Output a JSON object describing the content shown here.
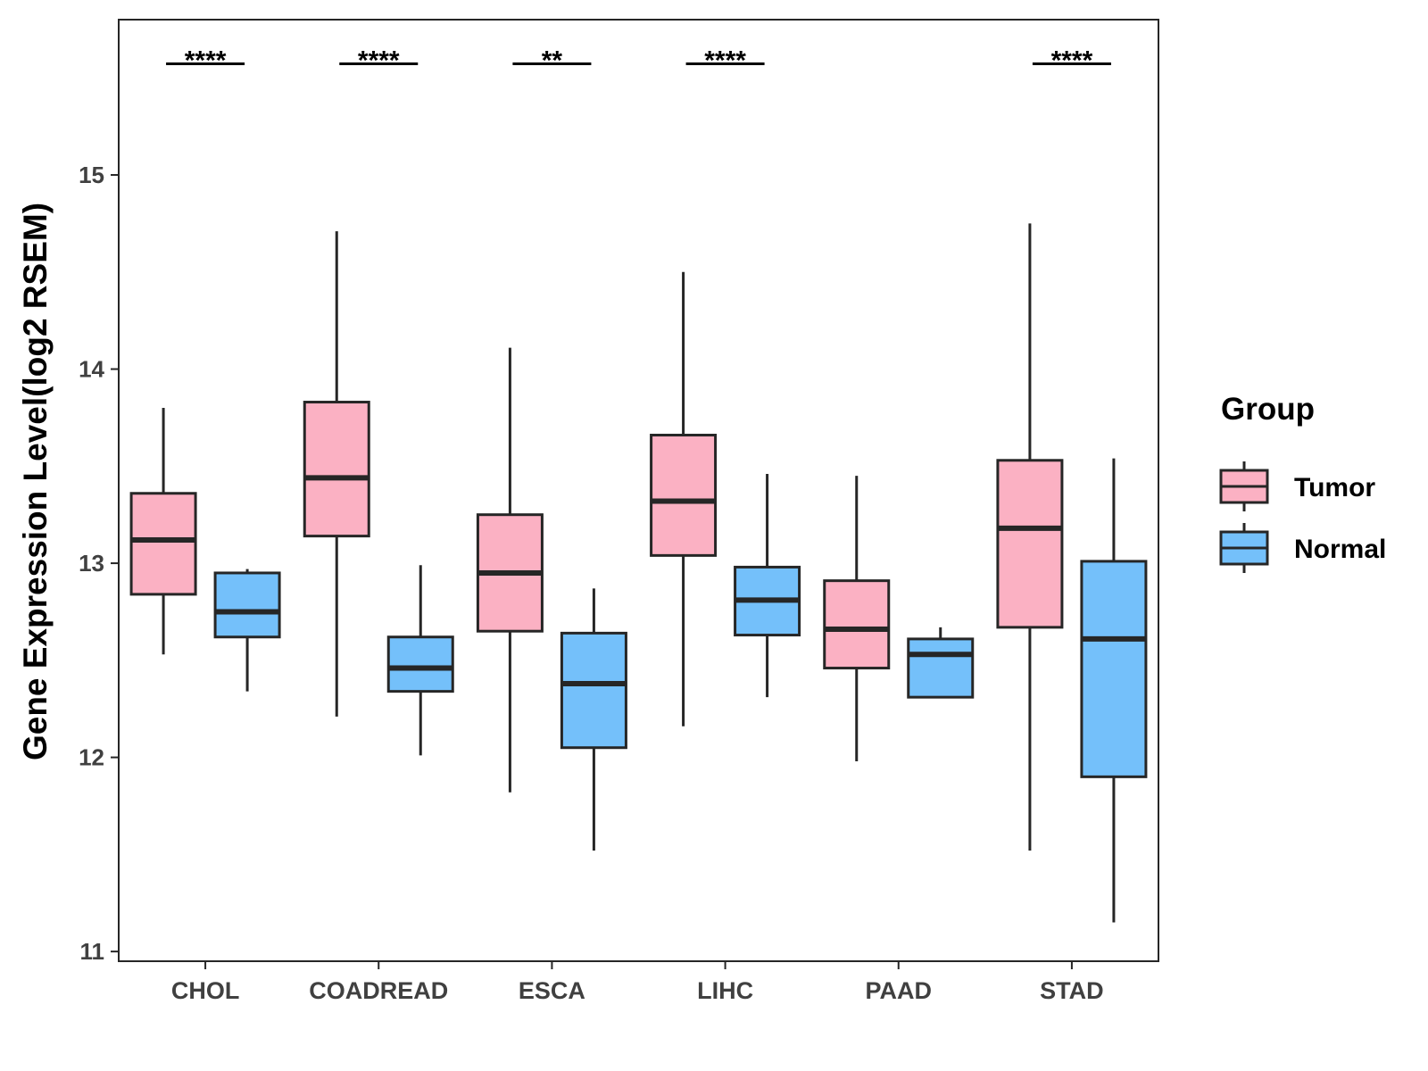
{
  "chart_data": {
    "type": "boxplot",
    "title": "",
    "xlabel": "",
    "ylabel": "Gene Expression Level(log2 RSEM)",
    "ylim": [
      10.95,
      15.8
    ],
    "yticks": [
      11,
      12,
      13,
      14,
      15
    ],
    "grid": false,
    "categories": [
      "CHOL",
      "COADREAD",
      "ESCA",
      "LIHC",
      "PAAD",
      "STAD"
    ],
    "legend": {
      "title": "Group",
      "position": "right",
      "entries": [
        {
          "name": "Tumor",
          "color": "#FBB1C3"
        },
        {
          "name": "Normal",
          "color": "#74C0FA"
        }
      ]
    },
    "series": [
      {
        "name": "Tumor",
        "color": "#FBB1C3",
        "boxes": [
          {
            "min": 12.53,
            "q1": 12.84,
            "median": 13.12,
            "q3": 13.36,
            "max": 13.8
          },
          {
            "min": 12.21,
            "q1": 13.14,
            "median": 13.44,
            "q3": 13.83,
            "max": 14.71
          },
          {
            "min": 11.82,
            "q1": 12.65,
            "median": 12.95,
            "q3": 13.25,
            "max": 14.11
          },
          {
            "min": 12.16,
            "q1": 13.04,
            "median": 13.32,
            "q3": 13.66,
            "max": 14.5
          },
          {
            "min": 11.98,
            "q1": 12.46,
            "median": 12.66,
            "q3": 12.91,
            "max": 13.45
          },
          {
            "min": 11.52,
            "q1": 12.67,
            "median": 13.18,
            "q3": 13.53,
            "max": 14.75
          }
        ]
      },
      {
        "name": "Normal",
        "color": "#74C0FA",
        "boxes": [
          {
            "min": 12.34,
            "q1": 12.62,
            "median": 12.75,
            "q3": 12.95,
            "max": 12.97
          },
          {
            "min": 12.01,
            "q1": 12.34,
            "median": 12.46,
            "q3": 12.62,
            "max": 12.99
          },
          {
            "min": 11.52,
            "q1": 12.05,
            "median": 12.38,
            "q3": 12.64,
            "max": 12.87
          },
          {
            "min": 12.31,
            "q1": 12.63,
            "median": 12.81,
            "q3": 12.98,
            "max": 13.46
          },
          {
            "min": 12.31,
            "q1": 12.31,
            "median": 12.53,
            "q3": 12.61,
            "max": 12.67
          },
          {
            "min": 11.15,
            "q1": 11.9,
            "median": 12.61,
            "q3": 13.01,
            "max": 13.54
          }
        ]
      }
    ],
    "significance": [
      "****",
      "****",
      "**",
      "****",
      "",
      "****"
    ],
    "significance_y": 15.6
  }
}
